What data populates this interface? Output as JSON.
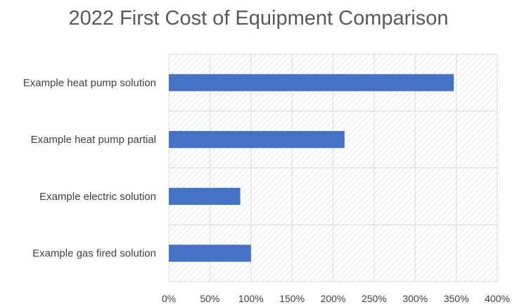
{
  "chart_data": {
    "type": "bar",
    "orientation": "horizontal",
    "title": "2022 First Cost of Equipment Comparison",
    "categories": [
      "Example heat pump solution",
      "Example heat pump partial",
      "Example electric solution",
      "Example gas fired solution"
    ],
    "values": [
      347,
      214,
      87,
      100
    ],
    "value_unit": "%",
    "xlim": [
      0,
      400
    ],
    "xticks": [
      "0%",
      "50%",
      "100%",
      "150%",
      "200%",
      "250%",
      "300%",
      "350%",
      "400%"
    ],
    "xtick_values": [
      0,
      50,
      100,
      150,
      200,
      250,
      300,
      350,
      400
    ],
    "grid": true,
    "plot_area_pattern": "diagonal-hatch",
    "colors": {
      "bar": "#4472c4",
      "grid": "#d9d9d9",
      "hatch": "#d0d0d0",
      "text": "#404040",
      "title": "#595959"
    },
    "legend": "none"
  }
}
